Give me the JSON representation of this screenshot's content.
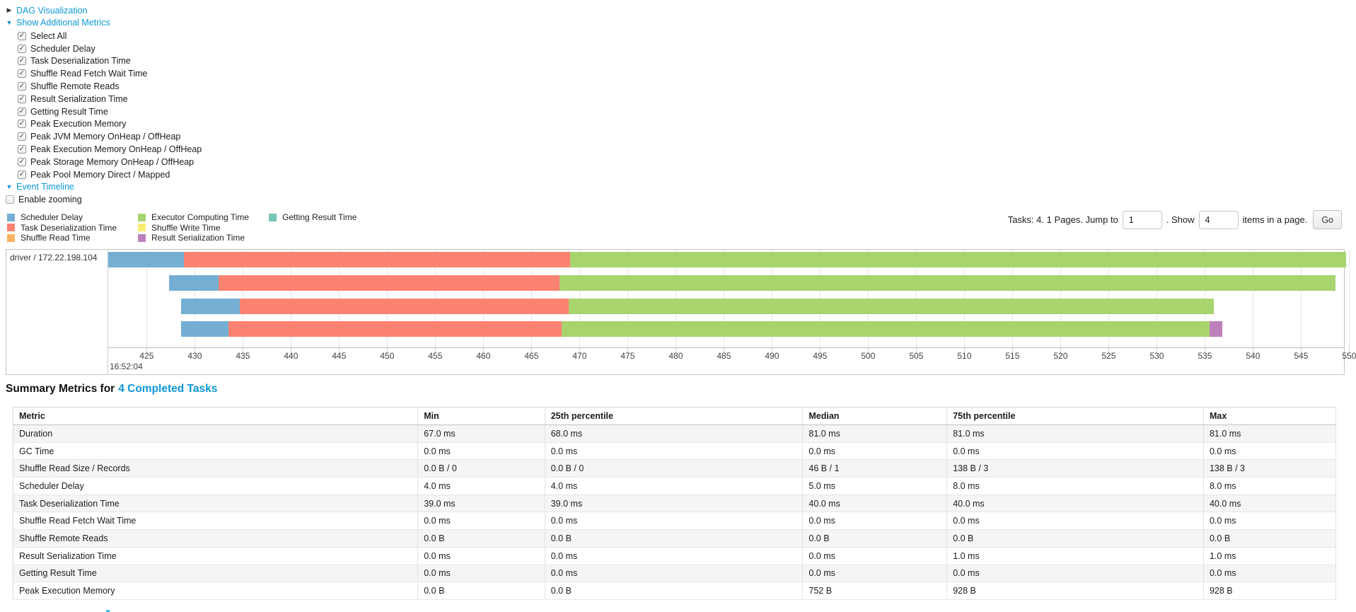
{
  "icons": {
    "collapsed_arrow": "▶",
    "expanded_arrow": "▼",
    "check": "✓"
  },
  "controls": {
    "dag_link": "DAG Visualization",
    "metrics_link": "Show Additional Metrics",
    "event_timeline_link": "Event Timeline",
    "enable_zooming_label": "Enable zooming",
    "metric_checkboxes": [
      {
        "label": "Select All",
        "checked": true
      },
      {
        "label": "Scheduler Delay",
        "checked": true
      },
      {
        "label": "Task Deserialization Time",
        "checked": true
      },
      {
        "label": "Shuffle Read Fetch Wait Time",
        "checked": true
      },
      {
        "label": "Shuffle Remote Reads",
        "checked": true
      },
      {
        "label": "Result Serialization Time",
        "checked": true
      },
      {
        "label": "Getting Result Time",
        "checked": true
      },
      {
        "label": "Peak Execution Memory",
        "checked": true
      },
      {
        "label": "Peak JVM Memory OnHeap / OffHeap",
        "checked": true
      },
      {
        "label": "Peak Execution Memory OnHeap / OffHeap",
        "checked": true
      },
      {
        "label": "Peak Storage Memory OnHeap / OffHeap",
        "checked": true
      },
      {
        "label": "Peak Pool Memory Direct / Mapped",
        "checked": true
      }
    ]
  },
  "pagination": {
    "prefix": "Tasks: 4. 1 Pages. Jump to",
    "jump_value": "1",
    "mid": ". Show",
    "show_value": "4",
    "suffix": "items in a page.",
    "go_label": "Go"
  },
  "chart_data": {
    "type": "timeline",
    "title": "Event Timeline",
    "group_label": "driver / 172.22.198.104",
    "legend": [
      {
        "type": "scheduler_delay",
        "label": "Scheduler Delay",
        "color": "#74AFD3",
        "col": 0
      },
      {
        "type": "task_deserialization",
        "label": "Task Deserialization Time",
        "color": "#FC8272",
        "col": 0
      },
      {
        "type": "shuffle_read",
        "label": "Shuffle Read Time",
        "color": "#FDB462",
        "col": 0
      },
      {
        "type": "executor_computing",
        "label": "Executor Computing Time",
        "color": "#A8D46E",
        "col": 1
      },
      {
        "type": "shuffle_write",
        "label": "Shuffle Write Time",
        "color": "#FBEC75",
        "col": 1
      },
      {
        "type": "result_serialization",
        "label": "Result Serialization Time",
        "color": "#BC80BD",
        "col": 1
      },
      {
        "type": "getting_result",
        "label": "Getting Result Time",
        "color": "#76C7B7",
        "col": 2
      }
    ],
    "x_axis": {
      "unit": "ms within second 16:52:04",
      "window_min": 421.0,
      "window_max": 549.7,
      "tick_first": 425,
      "tick_last": 550,
      "tick_step": 5,
      "major_label": "16:52:04"
    },
    "tasks": [
      {
        "row": 0,
        "start": 421.0,
        "segments": [
          [
            "scheduler_delay",
            428.9
          ],
          [
            "task_deserialization",
            469.0
          ],
          [
            "executor_computing",
            549.7
          ]
        ]
      },
      {
        "row": 1,
        "start": 427.3,
        "segments": [
          [
            "scheduler_delay",
            432.5
          ],
          [
            "task_deserialization",
            467.9
          ],
          [
            "executor_computing",
            548.6
          ]
        ]
      },
      {
        "row": 2,
        "start": 428.6,
        "segments": [
          [
            "scheduler_delay",
            434.7
          ],
          [
            "task_deserialization",
            468.9
          ],
          [
            "executor_computing",
            535.9
          ]
        ]
      },
      {
        "row": 3,
        "start": 428.6,
        "segments": [
          [
            "scheduler_delay",
            433.5
          ],
          [
            "task_deserialization",
            468.1
          ],
          [
            "executor_computing",
            535.5
          ],
          [
            "result_serialization",
            536.8
          ]
        ]
      }
    ]
  },
  "summary": {
    "heading_prefix": "Summary Metrics for",
    "heading_link": "4 Completed Tasks",
    "table": {
      "columns": [
        "Metric",
        "Min",
        "25th percentile",
        "Median",
        "75th percentile",
        "Max"
      ],
      "rows": [
        [
          "Duration",
          "67.0 ms",
          "68.0 ms",
          "81.0 ms",
          "81.0 ms",
          "81.0 ms"
        ],
        [
          "GC Time",
          "0.0 ms",
          "0.0 ms",
          "0.0 ms",
          "0.0 ms",
          "0.0 ms"
        ],
        [
          "Shuffle Read Size / Records",
          "0.0 B / 0",
          "0.0 B / 0",
          "46 B / 1",
          "138 B / 3",
          "138 B / 3"
        ],
        [
          "Scheduler Delay",
          "4.0 ms",
          "4.0 ms",
          "5.0 ms",
          "8.0 ms",
          "8.0 ms"
        ],
        [
          "Task Deserialization Time",
          "39.0 ms",
          "39.0 ms",
          "40.0 ms",
          "40.0 ms",
          "40.0 ms"
        ],
        [
          "Shuffle Read Fetch Wait Time",
          "0.0 ms",
          "0.0 ms",
          "0.0 ms",
          "0.0 ms",
          "0.0 ms"
        ],
        [
          "Shuffle Remote Reads",
          "0.0 B",
          "0.0 B",
          "0.0 B",
          "0.0 B",
          "0.0 B"
        ],
        [
          "Result Serialization Time",
          "0.0 ms",
          "0.0 ms",
          "0.0 ms",
          "1.0 ms",
          "1.0 ms"
        ],
        [
          "Getting Result Time",
          "0.0 ms",
          "0.0 ms",
          "0.0 ms",
          "0.0 ms",
          "0.0 ms"
        ],
        [
          "Peak Execution Memory",
          "0.0 B",
          "0.0 B",
          "752 B",
          "928 B",
          "928 B"
        ]
      ]
    }
  }
}
